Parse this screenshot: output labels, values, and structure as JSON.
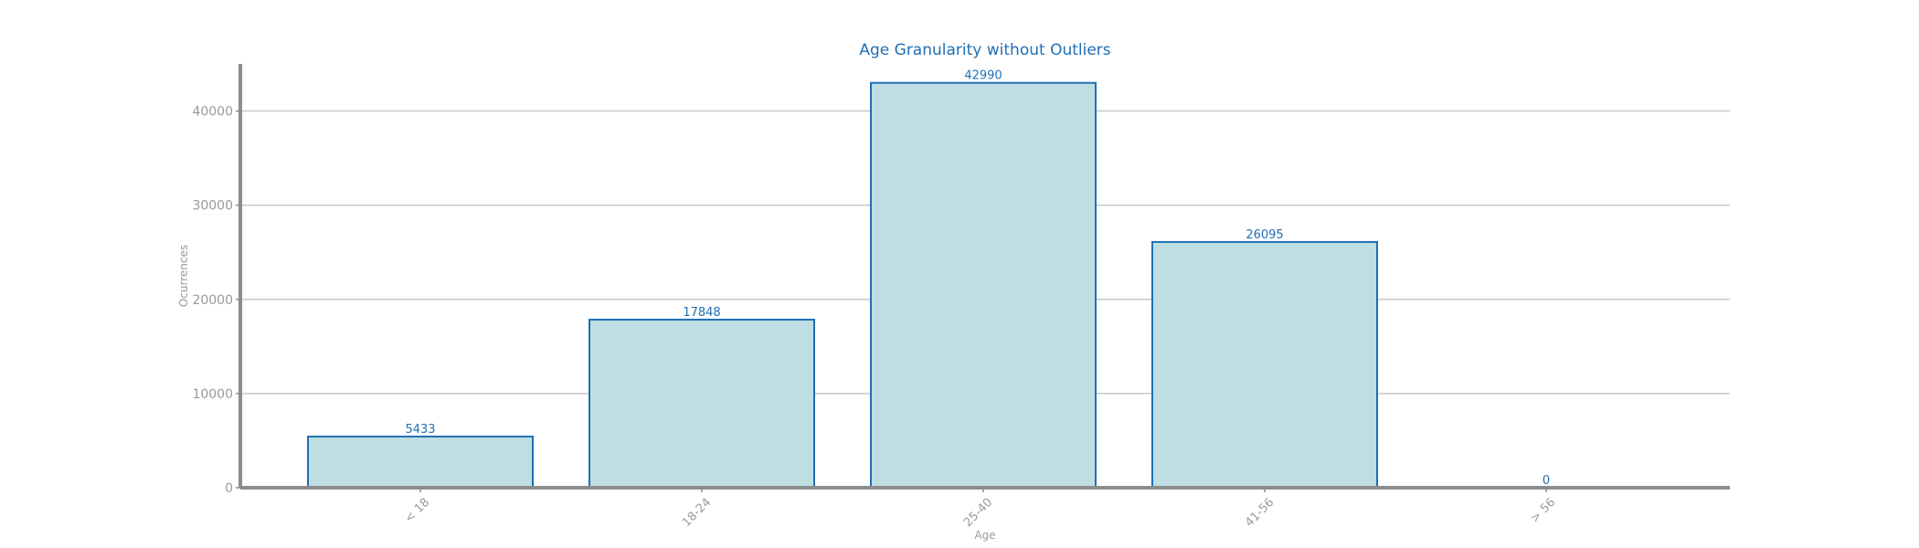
{
  "chart_data": {
    "type": "bar",
    "title": "Age Granularity without Outliers",
    "xlabel": "Age",
    "ylabel": "Ocurrences",
    "categories": [
      "< 18",
      "18-24",
      "25-40",
      "41-56",
      "> 56"
    ],
    "values": [
      5433,
      17848,
      42990,
      26095,
      0
    ],
    "data_labels": [
      "5433",
      "17848",
      "42990",
      "26095",
      "0"
    ],
    "yticks": [
      0,
      10000,
      20000,
      30000,
      40000
    ],
    "ytick_labels": [
      "0",
      "10000",
      "20000",
      "30000",
      "40000"
    ],
    "ylim": [
      0,
      45000
    ],
    "grid": "horizontal",
    "legend": "none",
    "colors": {
      "bar_fill": "#bfdee2",
      "bar_edge": "#1f6fb5",
      "title": "#1f6fb5",
      "data_label": "#1f6fb5",
      "axis_text": "#999999",
      "grid": "#c8c8c8",
      "spine": "#8c8c8c"
    }
  }
}
